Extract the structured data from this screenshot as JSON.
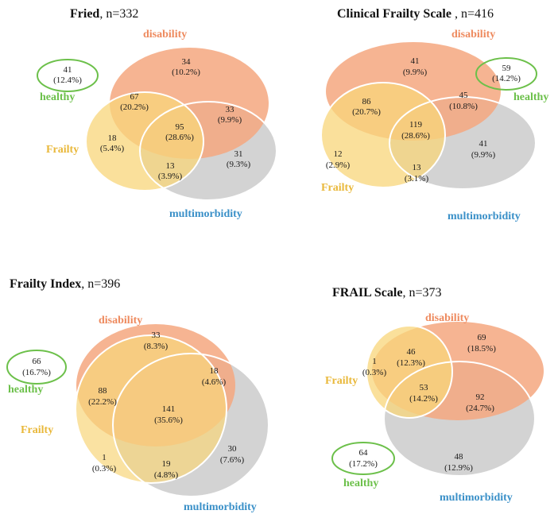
{
  "colors": {
    "disability": "#f4a77f",
    "multimorbidity": "#b8b8b8",
    "frailty": "#f8d67a",
    "overlap_frailty_disability": "#f4ae48",
    "healthy": "#6cc04a",
    "disability_label": "#ee8a5e",
    "frailty_label": "#e9b83a",
    "multimorbidity_label": "#3a90c8",
    "healthy_label": "#6cc04a"
  },
  "panels": [
    {
      "title_bold": "Fried",
      "title_n": ", n=332",
      "labels": {
        "disability": "disability",
        "frailty": "Frailty",
        "multimorbidity": "multimorbidity",
        "healthy": "healthy"
      },
      "values": [
        {
          "key": "healthy",
          "n": "41",
          "pct": "(12.4%)"
        },
        {
          "key": "disability_only",
          "n": "34",
          "pct": "(10.2%)"
        },
        {
          "key": "frailty_disability",
          "n": "67",
          "pct": "(20.2%)"
        },
        {
          "key": "disability_multimorbidity",
          "n": "33",
          "pct": "(9.9%)"
        },
        {
          "key": "all_three",
          "n": "95",
          "pct": "(28.6%)"
        },
        {
          "key": "frailty_only",
          "n": "18",
          "pct": "(5.4%)"
        },
        {
          "key": "frailty_multimorbidity",
          "n": "13",
          "pct": "(3.9%)"
        },
        {
          "key": "multimorbidity_only",
          "n": "31",
          "pct": "(9.3%)"
        }
      ]
    },
    {
      "title_bold": "Clinical Frailty Scale",
      "title_n": " , n=416",
      "labels": {
        "disability": "disability",
        "frailty": "Frailty",
        "multimorbidity": "multimorbidity",
        "healthy": "healthy"
      },
      "values": [
        {
          "key": "healthy",
          "n": "59",
          "pct": "(14.2%)"
        },
        {
          "key": "disability_only",
          "n": "41",
          "pct": "(9.9%)"
        },
        {
          "key": "frailty_disability",
          "n": "86",
          "pct": "(20.7%)"
        },
        {
          "key": "disability_multimorbidity",
          "n": "45",
          "pct": "(10.8%)"
        },
        {
          "key": "all_three",
          "n": "119",
          "pct": "(28.6%)"
        },
        {
          "key": "frailty_only",
          "n": "12",
          "pct": "(2.9%)"
        },
        {
          "key": "frailty_multimorbidity",
          "n": "13",
          "pct": "(3.1%)"
        },
        {
          "key": "multimorbidity_only",
          "n": "41",
          "pct": "(9.9%)"
        }
      ]
    },
    {
      "title_bold": "Frailty Index",
      "title_n": ", n=396",
      "labels": {
        "disability": "disability",
        "frailty": "Frailty",
        "multimorbidity": "multimorbidity",
        "healthy": "healthy"
      },
      "values": [
        {
          "key": "healthy",
          "n": "66",
          "pct": "(16.7%)"
        },
        {
          "key": "disability_only",
          "n": "33",
          "pct": "(8.3%)"
        },
        {
          "key": "disability_multimorbidity",
          "n": "18",
          "pct": "(4.6%)"
        },
        {
          "key": "frailty_disability",
          "n": "88",
          "pct": "(22.2%)"
        },
        {
          "key": "all_three",
          "n": "141",
          "pct": "(35.6%)"
        },
        {
          "key": "frailty_only",
          "n": "1",
          "pct": "(0.3%)"
        },
        {
          "key": "frailty_multimorbidity",
          "n": "19",
          "pct": "(4.8%)"
        },
        {
          "key": "multimorbidity_only",
          "n": "30",
          "pct": "(7.6%)"
        }
      ]
    },
    {
      "title_bold": "FRAIL Scale",
      "title_n": ", n=373",
      "labels": {
        "disability": "disability",
        "frailty": "Frailty",
        "multimorbidity": "multimorbidity",
        "healthy": "healthy"
      },
      "values": [
        {
          "key": "disability_only",
          "n": "69",
          "pct": "(18.5%)"
        },
        {
          "key": "frailty_only",
          "n": "1",
          "pct": "(0.3%)"
        },
        {
          "key": "frailty_disability",
          "n": "46",
          "pct": "(12.3%)"
        },
        {
          "key": "all_three",
          "n": "53",
          "pct": "(14.2%)"
        },
        {
          "key": "disability_multimorbidity",
          "n": "92",
          "pct": "(24.7%)"
        },
        {
          "key": "healthy",
          "n": "64",
          "pct": "(17.2%)"
        },
        {
          "key": "multimorbidity_only",
          "n": "48",
          "pct": "(12.9%)"
        }
      ]
    }
  ]
}
